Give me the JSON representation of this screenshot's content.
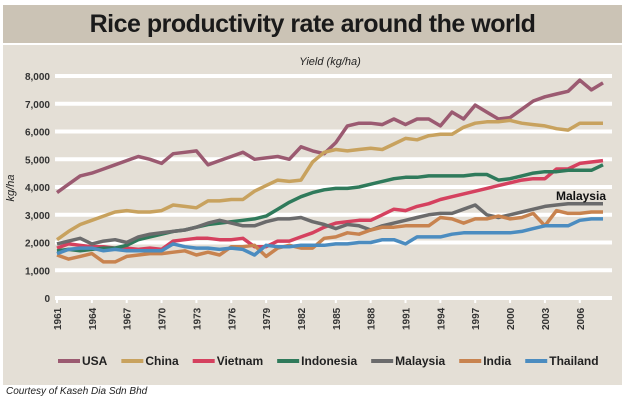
{
  "chart_data": {
    "type": "line",
    "title": "Rice productivity rate around the world",
    "subtitle": "Yield (kg/ha)",
    "ylabel": "kg/ha",
    "xlabel": "",
    "ylim": [
      0,
      8000
    ],
    "yticks": [
      "0",
      "1,000",
      "2,000",
      "3,000",
      "4,000",
      "5,000",
      "6,000",
      "7,000",
      "8,000"
    ],
    "ytick_values": [
      0,
      1000,
      2000,
      3000,
      4000,
      5000,
      6000,
      7000,
      8000
    ],
    "xticks": [
      "1961",
      "1964",
      "1967",
      "1970",
      "1973",
      "1976",
      "1979",
      "1982",
      "1985",
      "1988",
      "1991",
      "1994",
      "1997",
      "2000",
      "2003",
      "2006"
    ],
    "x_start": 1961,
    "x_end": 2008,
    "grid": true,
    "legend_position": "bottom",
    "annotation": "Malaysia",
    "series": [
      {
        "name": "USA",
        "color": "#9b5a71",
        "values": [
          3800,
          4100,
          4400,
          4500,
          4650,
          4800,
          4950,
          5100,
          5000,
          4850,
          5200,
          5250,
          5300,
          4800,
          4950,
          5100,
          5250,
          5000,
          5050,
          5100,
          5000,
          5450,
          5300,
          5200,
          5600,
          6200,
          6300,
          6300,
          6250,
          6450,
          6250,
          6450,
          6450,
          6200,
          6700,
          6450,
          6950,
          6700,
          6450,
          6500,
          6800,
          7100,
          7250,
          7350,
          7450,
          7850,
          7500,
          7750
        ]
      },
      {
        "name": "China",
        "color": "#c8a25e",
        "values": [
          2100,
          2400,
          2650,
          2800,
          2950,
          3100,
          3150,
          3100,
          3100,
          3150,
          3350,
          3300,
          3250,
          3500,
          3500,
          3550,
          3550,
          3850,
          4050,
          4250,
          4200,
          4250,
          4900,
          5250,
          5350,
          5300,
          5350,
          5400,
          5350,
          5550,
          5750,
          5700,
          5850,
          5900,
          5900,
          6150,
          6300,
          6350,
          6350,
          6400,
          6300,
          6250,
          6200,
          6100,
          6050,
          6300,
          6300,
          6300
        ]
      },
      {
        "name": "Vietnam",
        "color": "#d5415f",
        "values": [
          1800,
          1950,
          1900,
          1850,
          1850,
          1800,
          1800,
          1750,
          1800,
          1750,
          2050,
          2100,
          2150,
          2150,
          2100,
          2100,
          2150,
          1850,
          1850,
          2050,
          2050,
          2200,
          2350,
          2550,
          2700,
          2750,
          2800,
          2800,
          3000,
          3200,
          3150,
          3300,
          3400,
          3550,
          3650,
          3750,
          3850,
          3950,
          4050,
          4150,
          4250,
          4300,
          4300,
          4650,
          4650,
          4850,
          4900,
          4950
        ]
      },
      {
        "name": "Indonesia",
        "color": "#2f7a5b",
        "values": [
          1700,
          1750,
          1700,
          1750,
          1800,
          1800,
          1900,
          2100,
          2200,
          2300,
          2400,
          2450,
          2550,
          2650,
          2700,
          2750,
          2800,
          2850,
          2950,
          3200,
          3450,
          3650,
          3800,
          3900,
          3950,
          3950,
          4000,
          4100,
          4200,
          4300,
          4350,
          4350,
          4400,
          4400,
          4400,
          4400,
          4450,
          4450,
          4250,
          4300,
          4400,
          4500,
          4550,
          4550,
          4600,
          4600,
          4600,
          4800
        ]
      },
      {
        "name": "Malaysia",
        "color": "#6b6b6c",
        "values": [
          1950,
          2050,
          2150,
          1950,
          2050,
          2100,
          2000,
          2200,
          2300,
          2350,
          2400,
          2450,
          2550,
          2700,
          2800,
          2700,
          2600,
          2600,
          2750,
          2850,
          2850,
          2900,
          2750,
          2650,
          2500,
          2650,
          2600,
          2450,
          2600,
          2700,
          2800,
          2900,
          3000,
          3050,
          3050,
          3200,
          3350,
          3000,
          2900,
          3000,
          3100,
          3200,
          3300,
          3350,
          3400,
          3400,
          3400,
          3400
        ]
      },
      {
        "name": "India",
        "color": "#c8834f",
        "values": [
          1550,
          1400,
          1500,
          1600,
          1300,
          1300,
          1500,
          1550,
          1600,
          1600,
          1650,
          1700,
          1550,
          1650,
          1550,
          1850,
          1850,
          1900,
          1500,
          1800,
          1900,
          1800,
          1800,
          2150,
          2200,
          2350,
          2300,
          2450,
          2550,
          2550,
          2600,
          2600,
          2600,
          2900,
          2850,
          2700,
          2850,
          2850,
          2950,
          2850,
          2900,
          3050,
          2600,
          3150,
          3050,
          3050,
          3100,
          3100
        ]
      },
      {
        "name": "Thailand",
        "color": "#4b8cc0",
        "values": [
          1600,
          1750,
          1800,
          1800,
          1700,
          1750,
          1700,
          1700,
          1700,
          1700,
          1950,
          1850,
          1800,
          1800,
          1750,
          1800,
          1750,
          1550,
          1900,
          1850,
          1850,
          1900,
          1900,
          1900,
          1950,
          1950,
          2000,
          2000,
          2100,
          2100,
          1950,
          2200,
          2200,
          2200,
          2300,
          2350,
          2350,
          2350,
          2350,
          2350,
          2400,
          2500,
          2600,
          2600,
          2600,
          2800,
          2850,
          2850
        ]
      }
    ]
  },
  "footer": "Courtesy of Kaseh Dia Sdn Bhd"
}
